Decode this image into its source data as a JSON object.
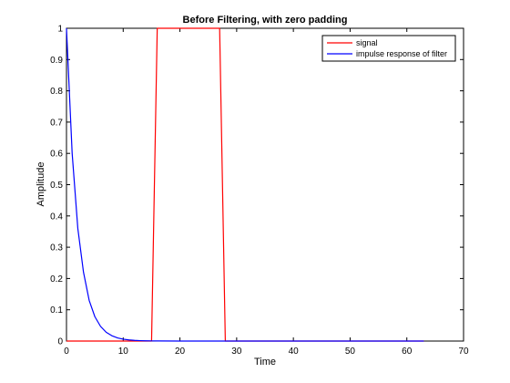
{
  "chart_data": {
    "type": "line",
    "title": "Before Filtering, with zero padding",
    "xlabel": "Time",
    "ylabel": "Amplitude",
    "xlim": [
      0,
      70
    ],
    "ylim": [
      0,
      1
    ],
    "xticks": [
      0,
      10,
      20,
      30,
      40,
      50,
      60,
      70
    ],
    "yticks": [
      0,
      0.1,
      0.2,
      0.3,
      0.4,
      0.5,
      0.6,
      0.7,
      0.8,
      0.9,
      1
    ],
    "grid": false,
    "legend_position": "top-right",
    "series": [
      {
        "name": "signal",
        "color": "#ff0000",
        "x": [
          0,
          15,
          16,
          27,
          28,
          63
        ],
        "y": [
          0,
          0,
          1,
          1,
          0,
          0
        ]
      },
      {
        "name": "impulse response of filter",
        "color": "#0000ff",
        "x": [
          0,
          1,
          2,
          3,
          4,
          5,
          6,
          7,
          8,
          9,
          10,
          11,
          12,
          13,
          14,
          15,
          16,
          20,
          30,
          40,
          50,
          60,
          63
        ],
        "y": [
          1,
          0.6,
          0.36,
          0.22,
          0.13,
          0.078,
          0.047,
          0.028,
          0.017,
          0.01,
          0.006,
          0.0036,
          0.0022,
          0.0013,
          0.0008,
          0.0005,
          0.0003,
          0,
          0,
          0,
          0,
          0,
          0
        ]
      }
    ]
  }
}
